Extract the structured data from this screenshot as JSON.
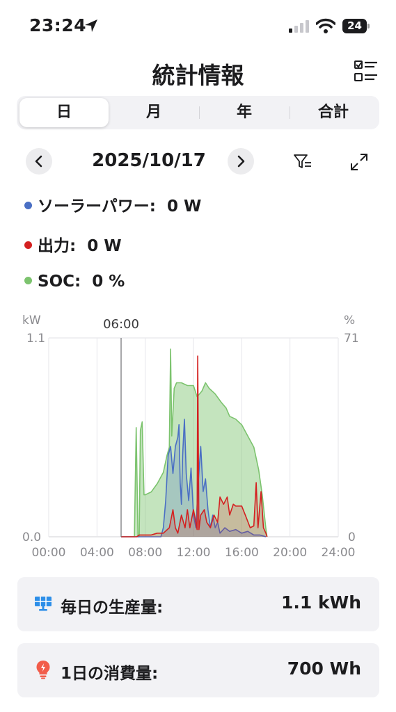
{
  "status_bar": {
    "time": "23:24",
    "battery": "24"
  },
  "header": {
    "title": "統計情報"
  },
  "tabs": [
    {
      "label": "日",
      "active": true
    },
    {
      "label": "月",
      "active": false
    },
    {
      "label": "年",
      "active": false
    },
    {
      "label": "合計",
      "active": false
    }
  ],
  "date_nav": {
    "date": "2025/10/17"
  },
  "legend": [
    {
      "label": "ソーラーパワー:",
      "value": "0 W",
      "color": "#4a6fc4"
    },
    {
      "label": "出力:",
      "value": "0 W",
      "color": "#d42020"
    },
    {
      "label": "SOC:",
      "value": "0 %",
      "color": "#7cc36e"
    }
  ],
  "chart_data": {
    "type": "area",
    "left_unit": "kW",
    "right_unit": "%",
    "ylim_left": [
      0,
      1.1
    ],
    "ylim_right": [
      0,
      71
    ],
    "left_ticks": [
      "1.1",
      "0.0"
    ],
    "right_ticks": [
      "71",
      "0"
    ],
    "x_ticks": [
      "00:00",
      "04:00",
      "08:00",
      "12:00",
      "16:00",
      "20:00",
      "24:00"
    ],
    "xlim_hours": [
      0,
      24
    ],
    "cursor": {
      "label": "06:00",
      "hour": 6.0
    },
    "grid": true,
    "series": [
      {
        "name": "SOC",
        "axis": "right",
        "color": "#7cc36e",
        "fill": "rgba(124,195,110,0.45)",
        "points": [
          [
            6.0,
            0
          ],
          [
            7.1,
            0
          ],
          [
            7.25,
            39
          ],
          [
            7.4,
            0
          ],
          [
            7.5,
            0
          ],
          [
            7.6,
            38
          ],
          [
            7.75,
            41
          ],
          [
            7.9,
            15
          ],
          [
            8.0,
            15
          ],
          [
            8.5,
            16
          ],
          [
            9.0,
            19
          ],
          [
            9.5,
            23
          ],
          [
            9.8,
            29
          ],
          [
            10.0,
            32
          ],
          [
            10.1,
            67
          ],
          [
            10.2,
            36
          ],
          [
            10.4,
            53
          ],
          [
            10.6,
            55
          ],
          [
            11.0,
            55
          ],
          [
            11.5,
            54
          ],
          [
            12.0,
            54
          ],
          [
            12.3,
            50
          ],
          [
            12.7,
            52
          ],
          [
            13.0,
            55
          ],
          [
            13.3,
            53
          ],
          [
            13.8,
            51
          ],
          [
            14.3,
            48
          ],
          [
            14.7,
            46
          ],
          [
            15.0,
            43
          ],
          [
            15.5,
            42
          ],
          [
            16.0,
            40
          ],
          [
            16.5,
            36
          ],
          [
            17.0,
            32
          ],
          [
            17.4,
            24
          ],
          [
            17.7,
            15
          ],
          [
            18.0,
            3
          ],
          [
            18.1,
            0
          ]
        ]
      },
      {
        "name": "ソーラーパワー",
        "axis": "left",
        "color": "#4a6fc4",
        "fill": "rgba(74,111,196,0.25)",
        "points": [
          [
            6.0,
            0
          ],
          [
            9.3,
            0
          ],
          [
            9.5,
            0.05
          ],
          [
            9.7,
            0.2
          ],
          [
            9.9,
            0.45
          ],
          [
            10.1,
            0.5
          ],
          [
            10.3,
            0.35
          ],
          [
            10.5,
            0.5
          ],
          [
            10.7,
            0.55
          ],
          [
            10.8,
            0.62
          ],
          [
            10.9,
            0.3
          ],
          [
            11.0,
            0.18
          ],
          [
            11.1,
            0.45
          ],
          [
            11.25,
            0.65
          ],
          [
            11.4,
            0.35
          ],
          [
            11.6,
            0.2
          ],
          [
            11.8,
            0.38
          ],
          [
            12.0,
            0.12
          ],
          [
            12.2,
            0.05
          ],
          [
            12.4,
            0.3
          ],
          [
            12.6,
            0.5
          ],
          [
            12.8,
            0.25
          ],
          [
            13.0,
            0.32
          ],
          [
            13.2,
            0.15
          ],
          [
            13.4,
            0.05
          ],
          [
            13.6,
            0.12
          ],
          [
            13.8,
            0.05
          ],
          [
            14.0,
            0.08
          ],
          [
            14.2,
            0.02
          ],
          [
            14.6,
            0.05
          ],
          [
            15.0,
            0.03
          ],
          [
            15.5,
            0.04
          ],
          [
            16.0,
            0.02
          ],
          [
            16.5,
            0.03
          ],
          [
            17.0,
            0.01
          ],
          [
            17.5,
            0.01
          ],
          [
            18.0,
            0
          ]
        ]
      },
      {
        "name": "出力",
        "axis": "left",
        "color": "#d42020",
        "fill": "rgba(212,32,32,0.2)",
        "points": [
          [
            6.0,
            0
          ],
          [
            7.3,
            0
          ],
          [
            7.5,
            0.01
          ],
          [
            8.5,
            0.01
          ],
          [
            9.0,
            0.02
          ],
          [
            9.5,
            0.02
          ],
          [
            10.0,
            0.05
          ],
          [
            10.3,
            0.15
          ],
          [
            10.5,
            0.05
          ],
          [
            10.7,
            0.02
          ],
          [
            11.0,
            0.12
          ],
          [
            11.3,
            0.05
          ],
          [
            11.5,
            0.15
          ],
          [
            11.7,
            0.05
          ],
          [
            12.0,
            0.15
          ],
          [
            12.2,
            0.08
          ],
          [
            12.3,
            0.04
          ],
          [
            12.35,
            1.0
          ],
          [
            12.45,
            0.04
          ],
          [
            12.6,
            0.12
          ],
          [
            12.9,
            0.15
          ],
          [
            13.1,
            0.08
          ],
          [
            13.4,
            0.05
          ],
          [
            13.7,
            0.12
          ],
          [
            14.0,
            0.08
          ],
          [
            14.2,
            0.22
          ],
          [
            14.5,
            0.18
          ],
          [
            14.8,
            0.22
          ],
          [
            15.0,
            0.12
          ],
          [
            15.3,
            0.18
          ],
          [
            15.5,
            0.17
          ],
          [
            16.0,
            0.17
          ],
          [
            16.3,
            0.12
          ],
          [
            16.7,
            0.05
          ],
          [
            17.0,
            0.06
          ],
          [
            17.2,
            0.3
          ],
          [
            17.35,
            0.05
          ],
          [
            17.6,
            0.25
          ],
          [
            17.8,
            0.05
          ],
          [
            18.0,
            0.02
          ],
          [
            18.1,
            0
          ]
        ]
      }
    ]
  },
  "cards": [
    {
      "label": "毎日の生産量:",
      "value": "1.1 kWh"
    },
    {
      "label": "1日の消費量:",
      "value": "700 Wh"
    }
  ]
}
